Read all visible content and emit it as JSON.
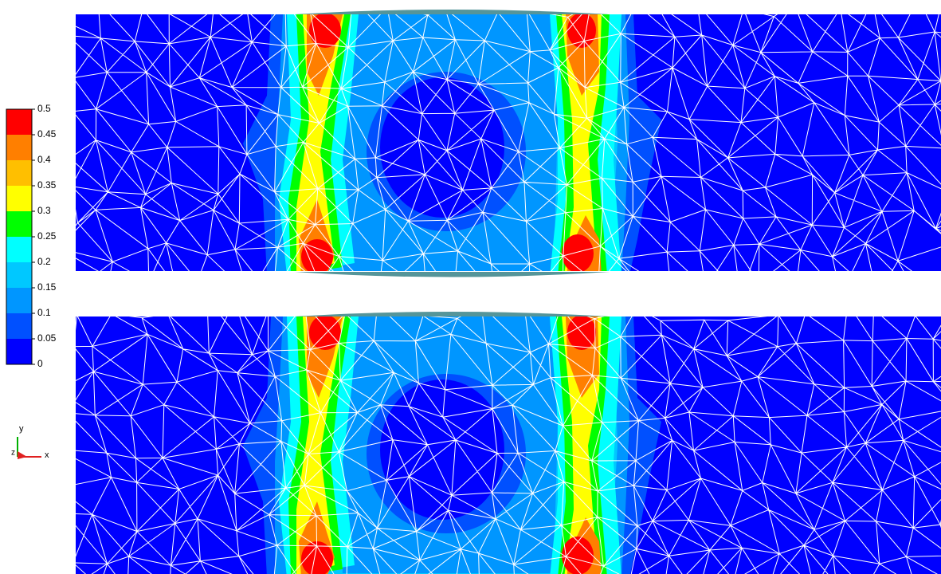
{
  "legend": {
    "ticks": [
      0.5,
      0.45,
      0.4,
      0.35,
      0.3,
      0.25,
      0.2,
      0.15,
      0.1,
      0.05,
      0
    ],
    "colors": [
      "#ff0000",
      "#ff7f00",
      "#ffbf00",
      "#ffff00",
      "#00ff00",
      "#00ffff",
      "#00c8ff",
      "#0096ff",
      "#0050ff",
      "#0000ff"
    ]
  },
  "triad": {
    "labels": [
      "y",
      "z",
      "x"
    ]
  }
}
